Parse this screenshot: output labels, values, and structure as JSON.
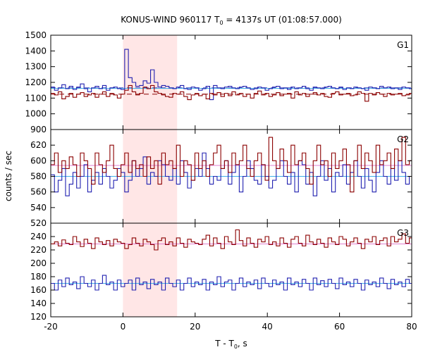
{
  "figure": {
    "title_pre": "KONUS-WIND 960117 T",
    "title_sub": "0",
    "title_post": " = 4137s UT (01:08:57.000)",
    "xlabel_pre": "T - T",
    "xlabel_sub": "0",
    "xlabel_post": ", s",
    "ylabel": "counts / sec"
  },
  "colors": {
    "red_series": "#8b0000",
    "blue_series": "#2020b0",
    "pink_level": "#e080d0",
    "cyan_level": "#40b0e8",
    "highlight": "#ffe6e6"
  },
  "chart_data": [
    {
      "type": "line",
      "panel": "G1",
      "xlim": [
        -20,
        80
      ],
      "ylim": [
        900,
        1500
      ],
      "xticks": [
        -20,
        0,
        20,
        40,
        60,
        80
      ],
      "yticks": [
        900,
        1000,
        1100,
        1200,
        1300,
        1400,
        1500
      ],
      "highlight_interval": [
        0,
        15
      ],
      "bin_start": -20,
      "bin_width": 1.024,
      "levels": [
        {
          "name": "blue-dashed-level",
          "value": 1165,
          "color": "blue",
          "style": "dashed"
        },
        {
          "name": "red-dashed-level",
          "value": 1125,
          "color": "red",
          "style": "dashed"
        },
        {
          "name": "cyan-level",
          "value": 1162,
          "color": "cyan",
          "style": "solid"
        }
      ],
      "series": [
        {
          "color": "blue",
          "values": [
            1170,
            1150,
            1165,
            1185,
            1160,
            1175,
            1155,
            1170,
            1190,
            1160,
            1140,
            1165,
            1175,
            1160,
            1180,
            1150,
            1165,
            1170,
            1160,
            1155,
            1410,
            1230,
            1200,
            1175,
            1180,
            1210,
            1195,
            1280,
            1200,
            1170,
            1180,
            1175,
            1165,
            1160,
            1170,
            1180,
            1160,
            1155,
            1170,
            1165,
            1150,
            1160,
            1175,
            1090,
            1180,
            1165,
            1160,
            1170,
            1175,
            1165,
            1160,
            1170,
            1175,
            1165,
            1155,
            1160,
            1170,
            1165,
            1150,
            1160,
            1170,
            1175,
            1160,
            1165,
            1155,
            1170,
            1160,
            1165,
            1175,
            1160,
            1150,
            1170,
            1165,
            1160,
            1170,
            1175,
            1165,
            1160,
            1170,
            1155,
            1165,
            1160,
            1170,
            1165,
            1160,
            1150,
            1170,
            1165,
            1160,
            1175,
            1165,
            1170,
            1160,
            1165,
            1155,
            1170,
            1165,
            1160
          ]
        },
        {
          "color": "red",
          "values": [
            1130,
            1120,
            1140,
            1095,
            1110,
            1130,
            1105,
            1125,
            1135,
            1110,
            1120,
            1130,
            1105,
            1125,
            1140,
            1110,
            1130,
            1120,
            1100,
            1125,
            1150,
            1180,
            1140,
            1120,
            1130,
            1170,
            1160,
            1180,
            1140,
            1130,
            1120,
            1110,
            1105,
            1130,
            1125,
            1140,
            1110,
            1090,
            1120,
            1130,
            1115,
            1125,
            1095,
            1130,
            1120,
            1135,
            1110,
            1130,
            1115,
            1140,
            1120,
            1130,
            1110,
            1125,
            1100,
            1130,
            1145,
            1120,
            1130,
            1110,
            1120,
            1135,
            1115,
            1125,
            1130,
            1100,
            1140,
            1120,
            1130,
            1110,
            1125,
            1135,
            1120,
            1130,
            1110,
            1105,
            1130,
            1140,
            1120,
            1125,
            1130,
            1115,
            1120,
            1140,
            1130,
            1080,
            1130,
            1120,
            1135,
            1125,
            1110,
            1130,
            1120,
            1125,
            1130,
            1115,
            1120,
            1130
          ]
        }
      ]
    },
    {
      "type": "line",
      "panel": "G2",
      "xlim": [
        -20,
        80
      ],
      "ylim": [
        520,
        640
      ],
      "xticks": [
        -20,
        0,
        20,
        40,
        60,
        80
      ],
      "yticks": [
        520,
        540,
        560,
        580,
        600,
        620,
        640
      ],
      "highlight_interval": [
        0,
        15
      ],
      "bin_start": -20,
      "bin_width": 1.024,
      "levels": [
        {
          "name": "pink-level",
          "value": 594,
          "color": "pink",
          "style": "solid"
        },
        {
          "name": "cyan-level",
          "value": 580,
          "color": "cyan",
          "style": "solid"
        }
      ],
      "series": [
        {
          "color": "blue",
          "values": [
            582,
            560,
            575,
            590,
            555,
            570,
            585,
            565,
            580,
            595,
            560,
            575,
            585,
            570,
            590,
            580,
            565,
            575,
            590,
            585,
            560,
            575,
            600,
            580,
            590,
            605,
            570,
            585,
            580,
            600,
            595,
            580,
            575,
            590,
            570,
            600,
            585,
            565,
            575,
            590,
            580,
            610,
            590,
            570,
            580,
            575,
            590,
            600,
            570,
            585,
            595,
            560,
            580,
            600,
            590,
            575,
            570,
            595,
            580,
            565,
            575,
            590,
            600,
            580,
            570,
            585,
            560,
            600,
            595,
            570,
            585,
            555,
            580,
            600,
            575,
            590,
            560,
            585,
            580,
            595,
            570,
            585,
            600,
            580,
            565,
            590,
            575,
            560,
            585,
            600,
            580,
            570,
            590,
            575,
            600,
            585,
            570,
            580
          ]
        },
        {
          "color": "red",
          "values": [
            595,
            610,
            585,
            600,
            590,
            605,
            595,
            580,
            610,
            600,
            590,
            570,
            610,
            595,
            585,
            600,
            620,
            590,
            580,
            595,
            610,
            585,
            600,
            590,
            595,
            580,
            605,
            590,
            600,
            570,
            610,
            595,
            600,
            590,
            620,
            580,
            600,
            595,
            575,
            610,
            590,
            600,
            580,
            595,
            610,
            620,
            590,
            600,
            585,
            610,
            595,
            600,
            620,
            590,
            580,
            600,
            610,
            595,
            575,
            630,
            600,
            590,
            615,
            600,
            585,
            620,
            595,
            600,
            610,
            590,
            570,
            600,
            620,
            595,
            600,
            580,
            610,
            590,
            600,
            615,
            595,
            560,
            600,
            620,
            590,
            610,
            600,
            585,
            620,
            595,
            600,
            610,
            590,
            615,
            600,
            630,
            595,
            600
          ]
        }
      ]
    },
    {
      "type": "line",
      "panel": "G3",
      "xlim": [
        -20,
        80
      ],
      "ylim": [
        120,
        260
      ],
      "xticks": [
        -20,
        0,
        20,
        40,
        60,
        80
      ],
      "yticks": [
        120,
        140,
        160,
        180,
        200,
        220,
        240,
        260
      ],
      "highlight_interval": [
        0,
        15
      ],
      "bin_start": -20,
      "bin_width": 1.024,
      "levels": [
        {
          "name": "pink-level",
          "value": 229,
          "color": "pink",
          "style": "solid"
        },
        {
          "name": "cyan-level",
          "value": 170,
          "color": "cyan",
          "style": "solid"
        }
      ],
      "series": [
        {
          "color": "red",
          "values": [
            229,
            232,
            226,
            235,
            230,
            228,
            240,
            232,
            225,
            236,
            230,
            222,
            238,
            232,
            228,
            234,
            226,
            236,
            232,
            230,
            222,
            228,
            238,
            230,
            226,
            236,
            232,
            228,
            220,
            234,
            238,
            228,
            232,
            226,
            238,
            230,
            224,
            236,
            232,
            230,
            228,
            236,
            242,
            226,
            238,
            230,
            222,
            240,
            232,
            228,
            250,
            234,
            226,
            238,
            230,
            224,
            236,
            232,
            240,
            228,
            232,
            226,
            238,
            230,
            224,
            236,
            240,
            230,
            226,
            242,
            232,
            228,
            236,
            230,
            224,
            238,
            232,
            228,
            240,
            236,
            226,
            232,
            238,
            230,
            222,
            236,
            232,
            240,
            228,
            234,
            238,
            226,
            240,
            232,
            236,
            244,
            230,
            238
          ]
        },
        {
          "color": "blue",
          "values": [
            170,
            160,
            175,
            165,
            178,
            168,
            172,
            162,
            180,
            170,
            165,
            175,
            160,
            170,
            182,
            168,
            172,
            160,
            175,
            165,
            170,
            175,
            160,
            178,
            168,
            172,
            162,
            176,
            168,
            172,
            160,
            178,
            170,
            165,
            175,
            160,
            170,
            178,
            165,
            172,
            168,
            176,
            160,
            172,
            168,
            180,
            165,
            172,
            175,
            160,
            170,
            178,
            165,
            172,
            168,
            175,
            162,
            178,
            170,
            165,
            175,
            168,
            172,
            160,
            178,
            168,
            172,
            165,
            176,
            170,
            160,
            178,
            168,
            174,
            165,
            176,
            170,
            162,
            178,
            168,
            172,
            165,
            176,
            170,
            160,
            175,
            168,
            172,
            165,
            178,
            170,
            162,
            176,
            168,
            172,
            165,
            176,
            170
          ]
        }
      ]
    }
  ],
  "panel_labels": [
    "G1",
    "G2",
    "G3"
  ]
}
